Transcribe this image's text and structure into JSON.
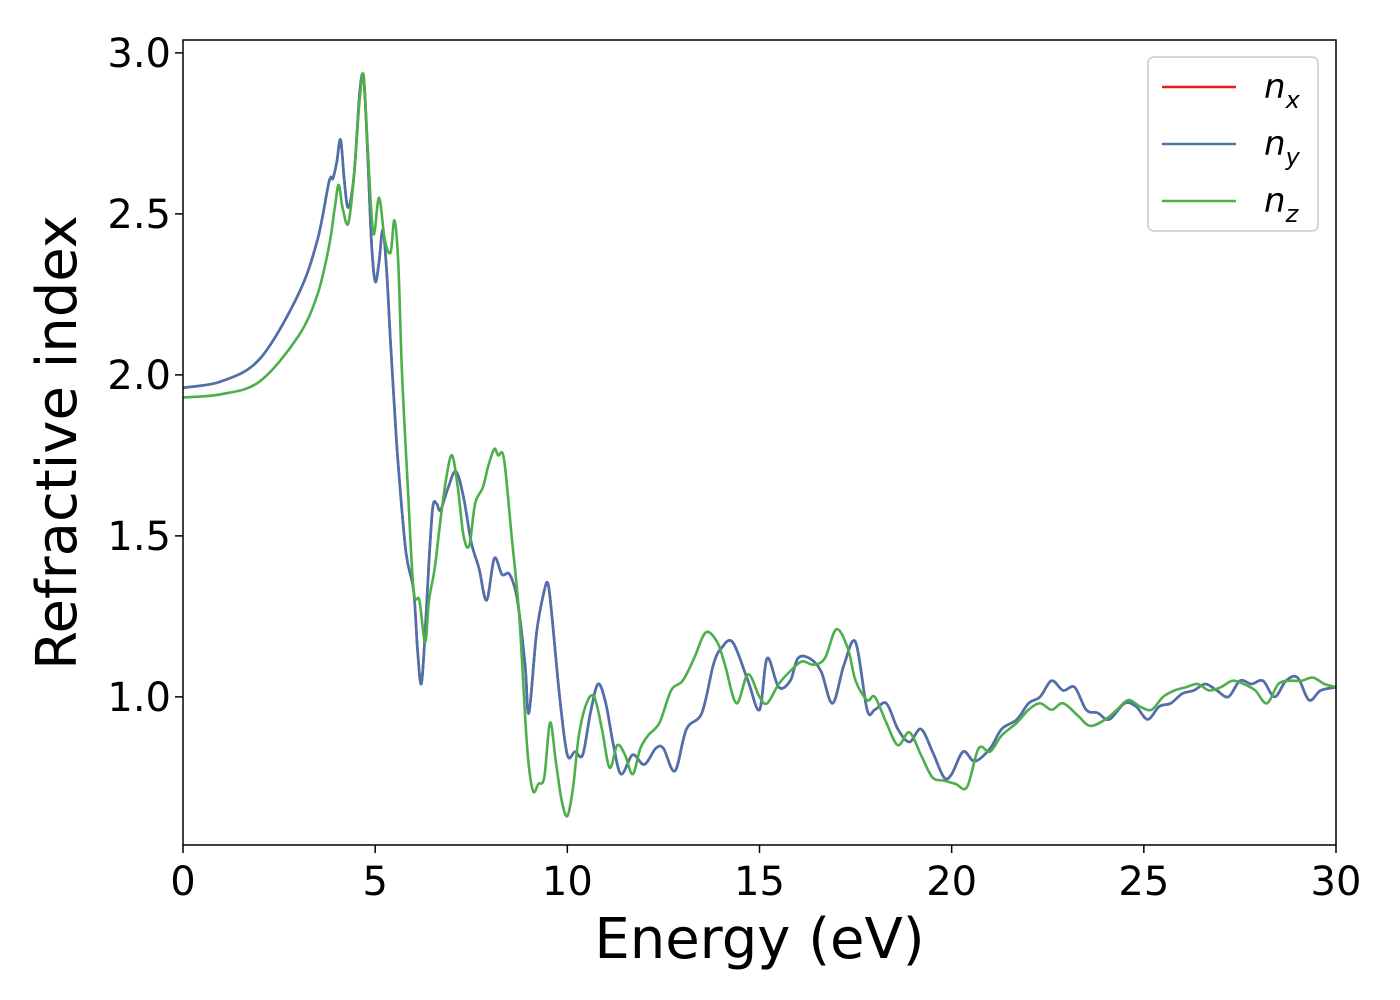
{
  "chart_data": {
    "type": "line",
    "title": "",
    "xlabel": "Energy (eV)",
    "ylabel": "Refractive index",
    "xlim": [
      0,
      30
    ],
    "ylim": [
      0.54,
      3.04
    ],
    "xticks": [
      0,
      5,
      10,
      15,
      20,
      25,
      30
    ],
    "xtick_labels": [
      "0",
      "5",
      "10",
      "15",
      "20",
      "25",
      "30"
    ],
    "yticks": [
      1.0,
      1.5,
      2.0,
      2.5,
      3.0
    ],
    "ytick_labels": [
      "1.0",
      "1.5",
      "2.0",
      "2.5",
      "3.0"
    ],
    "grid": false,
    "legend_position": "top-right",
    "series": [
      {
        "name": "n_x",
        "label_main": "n",
        "label_sub": "x",
        "color": "#e41a1c",
        "x": [
          0,
          1,
          2,
          3,
          3.5,
          3.8,
          3.9,
          4.0,
          4.1,
          4.2,
          4.3,
          4.45,
          4.6,
          4.7,
          4.8,
          4.9,
          5.0,
          5.1,
          5.2,
          5.3,
          5.4,
          5.5,
          5.6,
          5.8,
          6.0,
          6.1,
          6.2,
          6.3,
          6.4,
          6.5,
          6.6,
          6.7,
          6.9,
          7.1,
          7.3,
          7.5,
          7.7,
          7.9,
          8.1,
          8.3,
          8.5,
          8.7,
          8.9,
          9.0,
          9.2,
          9.4,
          9.5,
          9.6,
          9.8,
          10.0,
          10.2,
          10.4,
          10.6,
          10.8,
          11.0,
          11.2,
          11.4,
          11.7,
          12.0,
          12.3,
          12.5,
          12.8,
          13.1,
          13.5,
          13.8,
          14.0,
          14.3,
          14.7,
          15.0,
          15.2,
          15.5,
          15.8,
          16.0,
          16.3,
          16.6,
          16.9,
          17.2,
          17.5,
          17.8,
          18.0,
          18.3,
          18.6,
          18.9,
          19.2,
          19.5,
          19.8,
          20.0,
          20.3,
          20.6,
          21.0,
          21.3,
          21.7,
          22.0,
          22.3,
          22.6,
          22.9,
          23.2,
          23.5,
          23.8,
          24.1,
          24.5,
          24.8,
          25.1,
          25.4,
          25.7,
          26.0,
          26.3,
          26.6,
          26.9,
          27.2,
          27.5,
          27.8,
          28.1,
          28.4,
          28.7,
          29.0,
          29.3,
          29.6,
          30.0
        ],
        "y": [
          1.96,
          1.98,
          2.05,
          2.25,
          2.42,
          2.6,
          2.61,
          2.66,
          2.73,
          2.6,
          2.52,
          2.62,
          2.88,
          2.92,
          2.7,
          2.42,
          2.29,
          2.35,
          2.45,
          2.32,
          2.1,
          1.9,
          1.72,
          1.45,
          1.33,
          1.15,
          1.04,
          1.2,
          1.42,
          1.59,
          1.6,
          1.58,
          1.65,
          1.7,
          1.62,
          1.48,
          1.4,
          1.3,
          1.43,
          1.38,
          1.38,
          1.3,
          1.1,
          0.95,
          1.2,
          1.33,
          1.35,
          1.25,
          1.0,
          0.82,
          0.83,
          0.82,
          0.95,
          1.04,
          0.98,
          0.85,
          0.76,
          0.82,
          0.79,
          0.84,
          0.84,
          0.77,
          0.9,
          0.95,
          1.1,
          1.15,
          1.17,
          1.05,
          0.96,
          1.12,
          1.03,
          1.05,
          1.12,
          1.12,
          1.08,
          0.98,
          1.1,
          1.17,
          0.96,
          0.96,
          0.98,
          0.9,
          0.86,
          0.9,
          0.83,
          0.75,
          0.76,
          0.83,
          0.8,
          0.84,
          0.9,
          0.93,
          0.98,
          1.0,
          1.05,
          1.02,
          1.03,
          0.96,
          0.95,
          0.93,
          0.98,
          0.97,
          0.93,
          0.97,
          0.98,
          1.01,
          1.02,
          1.04,
          1.02,
          1.0,
          1.05,
          1.04,
          1.05,
          1.0,
          1.05,
          1.06,
          0.99,
          1.02,
          1.03
        ]
      },
      {
        "name": "n_y",
        "label_main": "n",
        "label_sub": "y",
        "color": "#4a72b0",
        "x": [
          0,
          1,
          2,
          3,
          3.5,
          3.8,
          3.9,
          4.0,
          4.1,
          4.2,
          4.3,
          4.45,
          4.6,
          4.7,
          4.8,
          4.9,
          5.0,
          5.1,
          5.2,
          5.3,
          5.4,
          5.5,
          5.6,
          5.8,
          6.0,
          6.1,
          6.2,
          6.3,
          6.4,
          6.5,
          6.6,
          6.7,
          6.9,
          7.1,
          7.3,
          7.5,
          7.7,
          7.9,
          8.1,
          8.3,
          8.5,
          8.7,
          8.9,
          9.0,
          9.2,
          9.4,
          9.5,
          9.6,
          9.8,
          10.0,
          10.2,
          10.4,
          10.6,
          10.8,
          11.0,
          11.2,
          11.4,
          11.7,
          12.0,
          12.3,
          12.5,
          12.8,
          13.1,
          13.5,
          13.8,
          14.0,
          14.3,
          14.7,
          15.0,
          15.2,
          15.5,
          15.8,
          16.0,
          16.3,
          16.6,
          16.9,
          17.2,
          17.5,
          17.8,
          18.0,
          18.3,
          18.6,
          18.9,
          19.2,
          19.5,
          19.8,
          20.0,
          20.3,
          20.6,
          21.0,
          21.3,
          21.7,
          22.0,
          22.3,
          22.6,
          22.9,
          23.2,
          23.5,
          23.8,
          24.1,
          24.5,
          24.8,
          25.1,
          25.4,
          25.7,
          26.0,
          26.3,
          26.6,
          26.9,
          27.2,
          27.5,
          27.8,
          28.1,
          28.4,
          28.7,
          29.0,
          29.3,
          29.6,
          30.0
        ],
        "y": [
          1.96,
          1.98,
          2.05,
          2.25,
          2.42,
          2.6,
          2.61,
          2.66,
          2.73,
          2.6,
          2.52,
          2.62,
          2.88,
          2.92,
          2.7,
          2.42,
          2.29,
          2.35,
          2.45,
          2.32,
          2.1,
          1.9,
          1.72,
          1.45,
          1.33,
          1.15,
          1.04,
          1.2,
          1.42,
          1.59,
          1.6,
          1.58,
          1.65,
          1.7,
          1.62,
          1.48,
          1.4,
          1.3,
          1.43,
          1.38,
          1.38,
          1.3,
          1.1,
          0.95,
          1.2,
          1.33,
          1.35,
          1.25,
          1.0,
          0.82,
          0.83,
          0.82,
          0.95,
          1.04,
          0.98,
          0.85,
          0.76,
          0.82,
          0.79,
          0.84,
          0.84,
          0.77,
          0.9,
          0.95,
          1.1,
          1.15,
          1.17,
          1.05,
          0.96,
          1.12,
          1.03,
          1.05,
          1.12,
          1.12,
          1.08,
          0.98,
          1.1,
          1.17,
          0.96,
          0.96,
          0.98,
          0.9,
          0.86,
          0.9,
          0.83,
          0.75,
          0.76,
          0.83,
          0.8,
          0.84,
          0.9,
          0.93,
          0.98,
          1.0,
          1.05,
          1.02,
          1.03,
          0.96,
          0.95,
          0.93,
          0.98,
          0.97,
          0.93,
          0.97,
          0.98,
          1.01,
          1.02,
          1.04,
          1.02,
          1.0,
          1.05,
          1.04,
          1.05,
          1.0,
          1.05,
          1.06,
          0.99,
          1.02,
          1.03
        ]
      },
      {
        "name": "n_z",
        "label_main": "n",
        "label_sub": "z",
        "color": "#4daf4a",
        "x": [
          0,
          1,
          2,
          3,
          3.5,
          3.8,
          3.95,
          4.05,
          4.15,
          4.3,
          4.45,
          4.6,
          4.7,
          4.8,
          4.95,
          5.1,
          5.25,
          5.4,
          5.5,
          5.6,
          5.7,
          5.85,
          6.0,
          6.15,
          6.3,
          6.4,
          6.55,
          6.7,
          6.85,
          7.0,
          7.15,
          7.3,
          7.45,
          7.6,
          7.8,
          7.95,
          8.1,
          8.2,
          8.35,
          8.55,
          8.75,
          8.95,
          9.1,
          9.25,
          9.4,
          9.55,
          9.7,
          9.85,
          10.0,
          10.15,
          10.3,
          10.5,
          10.7,
          10.9,
          11.1,
          11.3,
          11.5,
          11.7,
          11.9,
          12.1,
          12.4,
          12.7,
          13.0,
          13.3,
          13.6,
          13.9,
          14.1,
          14.4,
          14.7,
          15.0,
          15.2,
          15.5,
          15.8,
          16.1,
          16.4,
          16.7,
          17.0,
          17.3,
          17.5,
          17.8,
          18.0,
          18.3,
          18.6,
          18.9,
          19.2,
          19.5,
          19.8,
          20.1,
          20.4,
          20.7,
          21.0,
          21.3,
          21.7,
          22.0,
          22.3,
          22.6,
          22.9,
          23.3,
          23.6,
          24.0,
          24.3,
          24.6,
          24.9,
          25.2,
          25.5,
          25.8,
          26.1,
          26.4,
          26.7,
          27.0,
          27.3,
          27.6,
          27.9,
          28.2,
          28.5,
          28.8,
          29.1,
          29.4,
          29.7,
          30.0
        ],
        "y": [
          1.93,
          1.94,
          1.98,
          2.12,
          2.25,
          2.4,
          2.52,
          2.59,
          2.52,
          2.47,
          2.62,
          2.86,
          2.93,
          2.72,
          2.44,
          2.55,
          2.42,
          2.38,
          2.48,
          2.35,
          2.0,
          1.65,
          1.33,
          1.3,
          1.17,
          1.3,
          1.4,
          1.55,
          1.68,
          1.75,
          1.65,
          1.5,
          1.47,
          1.6,
          1.65,
          1.72,
          1.77,
          1.75,
          1.74,
          1.5,
          1.25,
          0.85,
          0.71,
          0.73,
          0.75,
          0.92,
          0.8,
          0.68,
          0.63,
          0.72,
          0.88,
          0.98,
          1.0,
          0.9,
          0.78,
          0.85,
          0.82,
          0.76,
          0.84,
          0.88,
          0.92,
          1.02,
          1.05,
          1.12,
          1.2,
          1.17,
          1.1,
          0.98,
          1.07,
          1.0,
          0.98,
          1.04,
          1.08,
          1.11,
          1.1,
          1.12,
          1.21,
          1.15,
          1.05,
          0.99,
          1.0,
          0.92,
          0.85,
          0.89,
          0.82,
          0.75,
          0.74,
          0.73,
          0.72,
          0.84,
          0.83,
          0.88,
          0.92,
          0.96,
          0.98,
          0.96,
          0.98,
          0.94,
          0.91,
          0.93,
          0.96,
          0.99,
          0.97,
          0.96,
          1.0,
          1.02,
          1.03,
          1.04,
          1.02,
          1.03,
          1.05,
          1.04,
          1.02,
          0.98,
          1.04,
          1.05,
          1.05,
          1.06,
          1.04,
          1.03
        ]
      }
    ]
  }
}
